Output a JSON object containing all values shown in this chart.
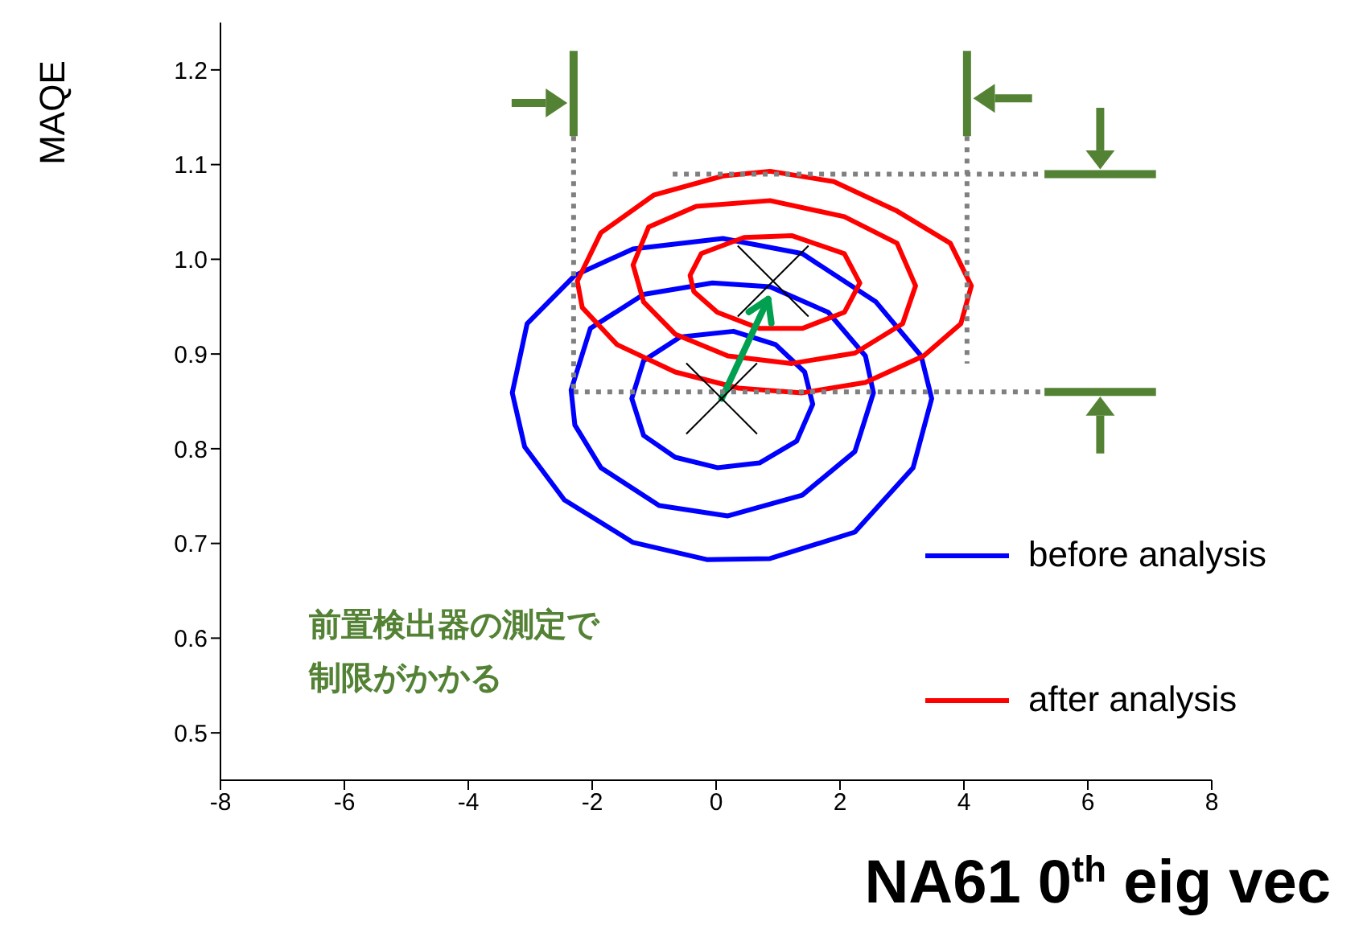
{
  "chart_data": {
    "type": "line",
    "xlabel": "NA61 0$^{th}$ eig vec",
    "ylabel": "MAQE",
    "xlim": [
      -8,
      8
    ],
    "xticks": [
      -8,
      -6,
      -4,
      -2,
      0,
      2,
      4,
      6,
      8
    ],
    "ylim": [
      0.45,
      1.25
    ],
    "yticks": [
      0.5,
      0.6,
      0.7,
      0.8,
      0.9,
      {
        "value": 1.0,
        "label": "1.0"
      },
      1.1,
      1.2
    ],
    "marker": "none",
    "annotations": [
      "前置検出器の測定で制限がかかる",
      "before analysis",
      "after analysis"
    ],
    "series": [
      {
        "color": "#808080",
        "line_style": "dotted",
        "x": [
          -2.3,
          -2.3
        ],
        "values": [
          1.13,
          0.86
        ]
      },
      {
        "color": "#808080",
        "line_style": "dotted",
        "x": [
          4.05,
          4.05
        ],
        "values": [
          1.13,
          0.89
        ]
      },
      {
        "color": "#808080",
        "line_style": "dotted",
        "x": [
          -0.7,
          5.3
        ],
        "values": [
          1.09,
          1.09
        ]
      },
      {
        "color": "#808080",
        "line_style": "dotted",
        "x": [
          -2.3,
          5.3
        ],
        "values": [
          0.86,
          0.86
        ]
      },
      {
        "type": "scatter",
        "color": "#000000",
        "marker": "cross",
        "x": [
          0.09,
          0.92
        ],
        "values": [
          0.853,
          0.977
        ]
      }
    ]
  }
}
